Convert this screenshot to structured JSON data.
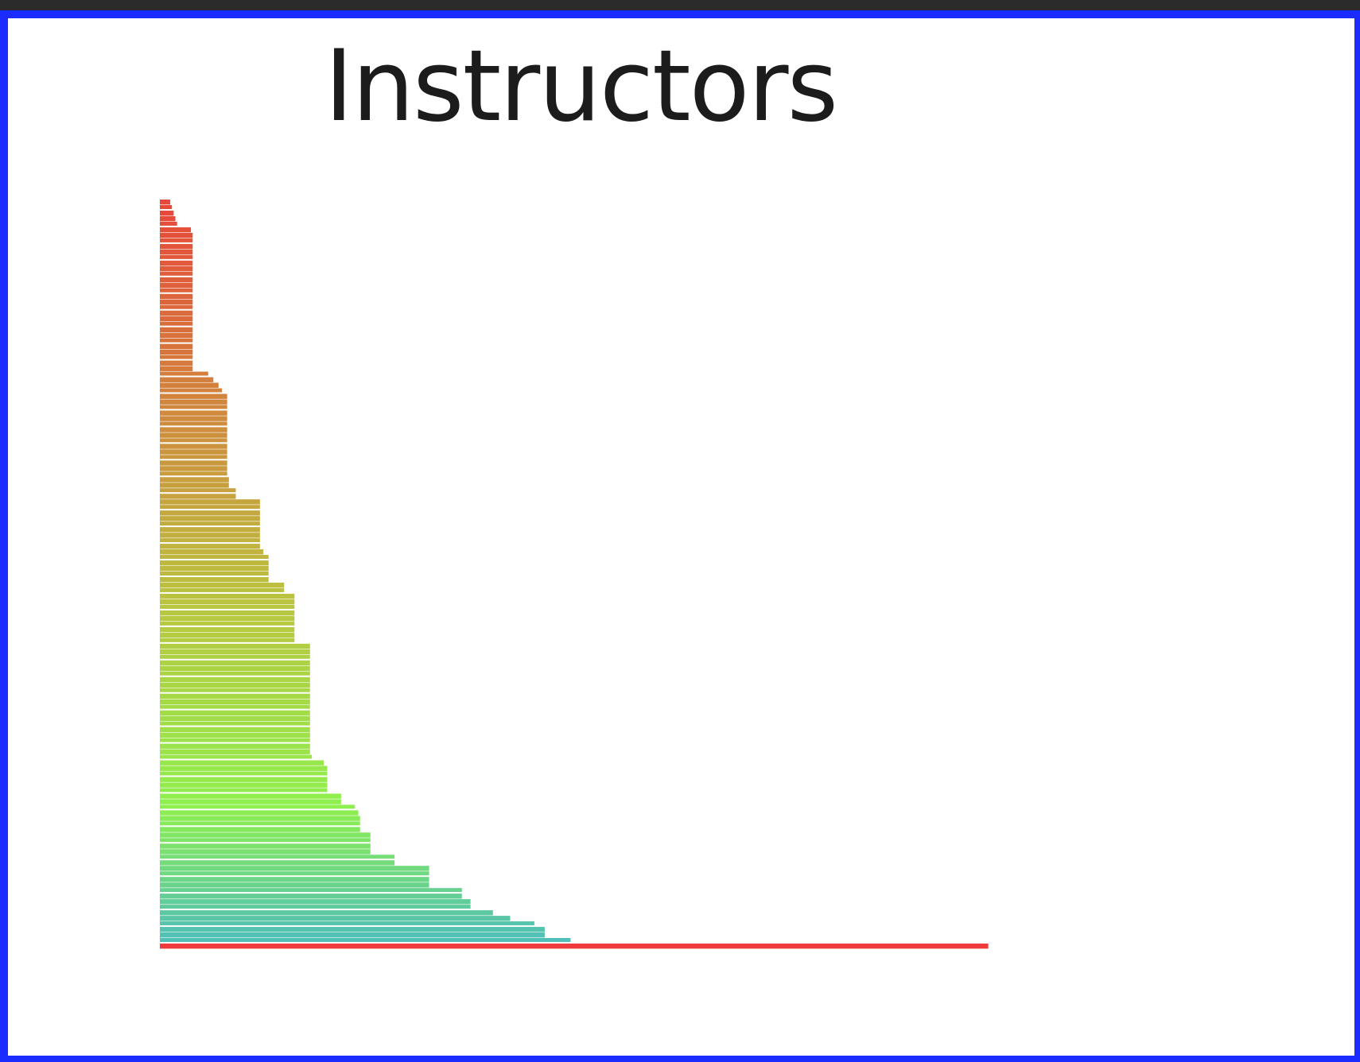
{
  "chart_data": {
    "type": "bar",
    "orientation": "horizontal",
    "title": "Instructors",
    "xlabel": "",
    "ylabel": "",
    "grid": false,
    "legend": "none",
    "bar_colors": {
      "first": "#e8473a",
      "middle": "#b9c640",
      "lime": "#8ef04e",
      "last": "#4fbfb8",
      "final": "#ef3b3b"
    },
    "values": [
      12,
      14,
      16,
      18,
      20,
      36,
      38,
      38,
      38,
      38,
      38,
      38,
      38,
      38,
      38,
      38,
      38,
      38,
      38,
      38,
      38,
      38,
      38,
      38,
      38,
      38,
      38,
      38,
      38,
      38,
      38,
      56,
      62,
      68,
      72,
      78,
      78,
      78,
      78,
      78,
      78,
      78,
      78,
      78,
      78,
      78,
      78,
      78,
      78,
      78,
      80,
      80,
      88,
      88,
      116,
      116,
      116,
      116,
      116,
      116,
      116,
      116,
      116,
      120,
      126,
      126,
      126,
      126,
      126,
      144,
      144,
      156,
      156,
      156,
      156,
      156,
      156,
      156,
      156,
      156,
      174,
      174,
      174,
      174,
      174,
      174,
      174,
      174,
      174,
      174,
      174,
      174,
      174,
      174,
      174,
      174,
      174,
      174,
      174,
      174,
      176,
      190,
      194,
      194,
      194,
      194,
      194,
      210,
      210,
      226,
      230,
      232,
      232,
      232,
      244,
      244,
      244,
      244,
      272,
      272,
      312,
      312,
      312,
      312,
      350,
      350,
      360,
      360,
      386,
      406,
      434,
      446,
      446,
      476,
      960
    ]
  }
}
